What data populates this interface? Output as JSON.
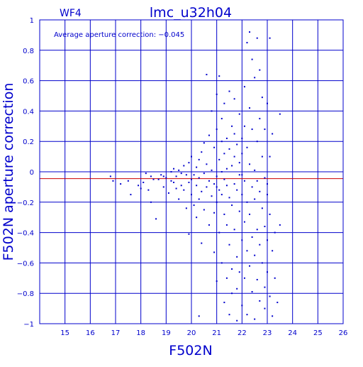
{
  "chart_data": {
    "type": "scatter",
    "panel_label": "WF4",
    "title": "lmc_u32h04",
    "annotation": "Average aperture correction: −0.045",
    "xlabel": "F502N",
    "ylabel": "F502N aperture correction",
    "xlim": [
      14,
      26
    ],
    "ylim": [
      -1,
      1
    ],
    "x_ticks": [
      "15",
      "16",
      "17",
      "18",
      "19",
      "20",
      "21",
      "22",
      "23",
      "24",
      "25",
      "26"
    ],
    "y_ticks": [
      "1",
      "0.8",
      "0.6",
      "0.4",
      "0.2",
      "0",
      "−0.2",
      "−0.4",
      "−0.6",
      "−0.8",
      "−1"
    ],
    "grid": true,
    "reference_lines": [
      {
        "name": "zero",
        "y": 0,
        "color": "#0000cc"
      },
      {
        "name": "average",
        "y": -0.045,
        "color": "#cc0000"
      }
    ],
    "colors": {
      "axis": "#0000cc",
      "points": "#0000cc",
      "average_line": "#cc0000"
    },
    "points": [
      [
        16.8,
        -0.03
      ],
      [
        16.9,
        -0.06
      ],
      [
        17.2,
        -0.08
      ],
      [
        17.5,
        -0.06
      ],
      [
        17.6,
        -0.15
      ],
      [
        17.9,
        -0.09
      ],
      [
        18.0,
        -0.11
      ],
      [
        18.1,
        -0.07
      ],
      [
        18.2,
        -0.01
      ],
      [
        18.3,
        -0.12
      ],
      [
        18.4,
        -0.2
      ],
      [
        18.4,
        -0.03
      ],
      [
        18.5,
        -0.05
      ],
      [
        18.6,
        -0.31
      ],
      [
        18.7,
        -0.05
      ],
      [
        18.8,
        -0.02
      ],
      [
        18.9,
        -0.03
      ],
      [
        18.9,
        -0.1
      ],
      [
        19.0,
        -0.04
      ],
      [
        19.1,
        -0.14
      ],
      [
        19.2,
        0.0
      ],
      [
        19.2,
        -0.06
      ],
      [
        19.3,
        -0.07
      ],
      [
        19.3,
        0.02
      ],
      [
        19.4,
        -0.11
      ],
      [
        19.4,
        -0.03
      ],
      [
        19.5,
        -0.18
      ],
      [
        19.5,
        0.01
      ],
      [
        19.6,
        -0.09
      ],
      [
        19.6,
        -0.01
      ],
      [
        19.7,
        0.04
      ],
      [
        19.7,
        -0.12
      ],
      [
        19.8,
        -0.02
      ],
      [
        19.8,
        -0.24
      ],
      [
        19.9,
        0.06
      ],
      [
        19.9,
        -0.07
      ],
      [
        19.9,
        -0.41
      ],
      [
        20.0,
        -0.05
      ],
      [
        20.0,
        -0.15
      ],
      [
        20.0,
        0.1
      ],
      [
        20.1,
        -0.02
      ],
      [
        20.1,
        -0.22
      ],
      [
        20.2,
        0.03
      ],
      [
        20.2,
        -0.09
      ],
      [
        20.2,
        -0.3
      ],
      [
        20.3,
        0.08
      ],
      [
        20.3,
        -0.04
      ],
      [
        20.3,
        -0.18
      ],
      [
        20.4,
        0.13
      ],
      [
        20.4,
        -0.13
      ],
      [
        20.4,
        -0.47
      ],
      [
        20.5,
        0.19
      ],
      [
        20.5,
        -0.01
      ],
      [
        20.5,
        -0.25
      ],
      [
        20.6,
        0.05
      ],
      [
        20.6,
        -0.1
      ],
      [
        20.6,
        0.64
      ],
      [
        20.7,
        0.24
      ],
      [
        20.7,
        -0.06
      ],
      [
        20.7,
        -0.35
      ],
      [
        20.8,
        0.01
      ],
      [
        20.8,
        -0.16
      ],
      [
        20.8,
        0.4
      ],
      [
        20.9,
        0.16
      ],
      [
        20.9,
        -0.08
      ],
      [
        20.9,
        -0.53
      ],
      [
        20.9,
        -0.27
      ],
      [
        21.0,
        0.28
      ],
      [
        21.0,
        -0.03
      ],
      [
        21.0,
        -0.2
      ],
      [
        21.0,
        0.51
      ],
      [
        21.0,
        -0.72
      ],
      [
        21.1,
        0.08
      ],
      [
        21.1,
        -0.12
      ],
      [
        21.1,
        -0.4
      ],
      [
        21.1,
        0.63
      ],
      [
        21.2,
        0.2
      ],
      [
        21.2,
        0.0
      ],
      [
        21.2,
        -0.15
      ],
      [
        21.2,
        -0.6
      ],
      [
        21.2,
        0.35
      ],
      [
        21.3,
        0.12
      ],
      [
        21.3,
        -0.05
      ],
      [
        21.3,
        -0.28
      ],
      [
        21.3,
        -0.86
      ],
      [
        21.3,
        0.45
      ],
      [
        21.4,
        0.22
      ],
      [
        21.4,
        -0.09
      ],
      [
        21.4,
        -0.35
      ],
      [
        21.4,
        -0.7
      ],
      [
        21.4,
        0.02
      ],
      [
        21.5,
        0.15
      ],
      [
        21.5,
        -0.17
      ],
      [
        21.5,
        -0.48
      ],
      [
        21.5,
        -0.94
      ],
      [
        21.5,
        0.53
      ],
      [
        21.6,
        0.3
      ],
      [
        21.6,
        0.04
      ],
      [
        21.6,
        -0.22
      ],
      [
        21.6,
        -0.64
      ],
      [
        21.6,
        -0.8
      ],
      [
        21.7,
        0.1
      ],
      [
        21.7,
        -0.08
      ],
      [
        21.7,
        -0.38
      ],
      [
        21.7,
        0.25
      ],
      [
        21.7,
        0.48
      ],
      [
        21.8,
        0.18
      ],
      [
        21.8,
        -0.12
      ],
      [
        21.8,
        -0.56
      ],
      [
        21.8,
        -0.77
      ],
      [
        21.8,
        -0.98
      ],
      [
        21.9,
        0.06
      ],
      [
        21.9,
        -0.02
      ],
      [
        21.9,
        -0.26
      ],
      [
        21.9,
        -0.66
      ],
      [
        21.9,
        0.38
      ],
      [
        22.0,
        0.22
      ],
      [
        22.0,
        -0.15
      ],
      [
        22.0,
        -0.45
      ],
      [
        22.0,
        -0.88
      ],
      [
        22.0,
        0.12
      ],
      [
        22.1,
        0.3
      ],
      [
        22.1,
        -0.06
      ],
      [
        22.1,
        -0.33
      ],
      [
        22.1,
        -0.7
      ],
      [
        22.1,
        0.56
      ],
      [
        22.2,
        0.16
      ],
      [
        22.2,
        -0.2
      ],
      [
        22.2,
        -0.52
      ],
      [
        22.2,
        -0.94
      ],
      [
        22.2,
        0.85
      ],
      [
        22.3,
        0.42
      ],
      [
        22.3,
        0.05
      ],
      [
        22.3,
        -0.28
      ],
      [
        22.3,
        -0.62
      ],
      [
        22.3,
        0.92
      ],
      [
        22.4,
        0.28
      ],
      [
        22.4,
        -0.1
      ],
      [
        22.4,
        -0.43
      ],
      [
        22.4,
        -0.79
      ],
      [
        22.4,
        0.74
      ],
      [
        22.5,
        0.62
      ],
      [
        22.5,
        0.01
      ],
      [
        22.5,
        -0.18
      ],
      [
        22.5,
        -0.55
      ],
      [
        22.5,
        -0.97
      ],
      [
        22.6,
        0.2
      ],
      [
        22.6,
        -0.06
      ],
      [
        22.6,
        -0.38
      ],
      [
        22.6,
        -0.71
      ],
      [
        22.6,
        0.88
      ],
      [
        22.7,
        0.35
      ],
      [
        22.7,
        -0.13
      ],
      [
        22.7,
        -0.48
      ],
      [
        22.7,
        -0.85
      ],
      [
        22.7,
        0.67
      ],
      [
        22.8,
        0.1
      ],
      [
        22.8,
        -0.24
      ],
      [
        22.8,
        -0.6
      ],
      [
        22.8,
        0.49
      ],
      [
        22.9,
        0.28
      ],
      [
        22.9,
        -0.04
      ],
      [
        22.9,
        -0.36
      ],
      [
        22.9,
        -0.76
      ],
      [
        22.9,
        -0.9
      ],
      [
        23.0,
        0.45
      ],
      [
        23.0,
        -0.15
      ],
      [
        23.0,
        -0.45
      ],
      [
        23.0,
        -0.66
      ],
      [
        23.0,
        -0.08
      ],
      [
        23.1,
        0.88
      ],
      [
        23.1,
        -0.28
      ],
      [
        23.1,
        -0.82
      ],
      [
        23.1,
        0.1
      ],
      [
        23.2,
        0.25
      ],
      [
        23.2,
        -0.52
      ],
      [
        23.2,
        -0.95
      ],
      [
        23.3,
        -0.4
      ],
      [
        23.3,
        -0.7
      ],
      [
        23.4,
        -0.86
      ],
      [
        23.5,
        0.38
      ],
      [
        23.5,
        -0.35
      ],
      [
        20.3,
        -0.95
      ],
      [
        21.0,
        -0.1
      ],
      [
        22.0,
        -0.02
      ]
    ]
  }
}
